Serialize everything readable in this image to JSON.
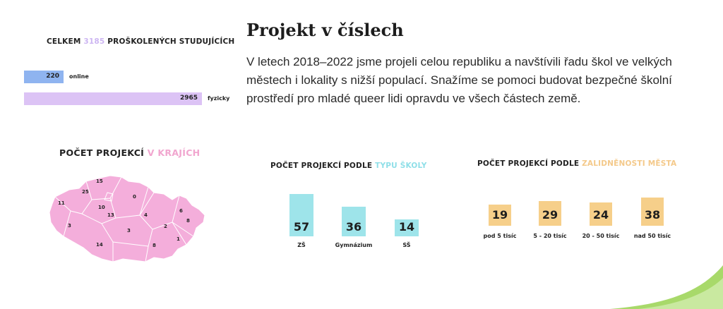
{
  "header": {
    "title": "Projekt v číslech",
    "paragraph": "V letech 2018–2022 jsme projeli celou republiku a navštívili řadu škol ve velkých městech i lokality s nižší populací. Snažíme se pomoci budovat bezpečné školní prostředí pro mladé queer lidi opravdu ve všech částech země."
  },
  "students": {
    "title_prefix": "CELKEM ",
    "title_number": "3185",
    "title_suffix": " PROŠKOLENÝCH STUDUJÍCÍCH"
  },
  "regions": {
    "title_prefix": "POČET PROJEKCÍ ",
    "title_accent": "V KRAJÍCH",
    "labels": [
      "15",
      "25",
      "0",
      "11",
      "10",
      "13",
      "4",
      "6",
      "3",
      "3",
      "2",
      "8",
      "14",
      "8",
      "1"
    ]
  },
  "school_type": {
    "title_prefix": "POČET PROJEKCÍ PODLE ",
    "title_accent": "TYPU ŠKOLY"
  },
  "town_size": {
    "title_prefix": "POČET PROJEKCÍ PODLE ",
    "title_accent": "ZALIDNĚNOSTI MĚSTA"
  },
  "colors": {
    "online": "#8fb4f0",
    "fyzicky": "#dcc3f5",
    "cyan": "#9ee4ea",
    "orange": "#f6cf8a",
    "map_pink": "#f4aedb",
    "green": "#a8d96a"
  },
  "chart_data": [
    {
      "type": "bar",
      "orientation": "horizontal",
      "title": "CELKEM 3185 PROŠKOLENÝCH STUDUJÍCÍCH",
      "categories": [
        "online",
        "fyzicky"
      ],
      "values": [
        220,
        2965
      ],
      "total": 3185
    },
    {
      "type": "bar",
      "title": "POČET PROJEKCÍ PODLE TYPU ŠKOLY",
      "categories": [
        "ZŠ",
        "Gymnázium",
        "SŠ"
      ],
      "values": [
        57,
        36,
        14
      ]
    },
    {
      "type": "bar",
      "title": "POČET PROJEKCÍ PODLE ZALIDNĚNOSTI MĚSTA",
      "categories": [
        "pod 5 tisíc",
        "5 - 20 tisíc",
        "20 - 50 tisíc",
        "nad 50 tisíc"
      ],
      "values": [
        19,
        29,
        24,
        38
      ]
    }
  ]
}
